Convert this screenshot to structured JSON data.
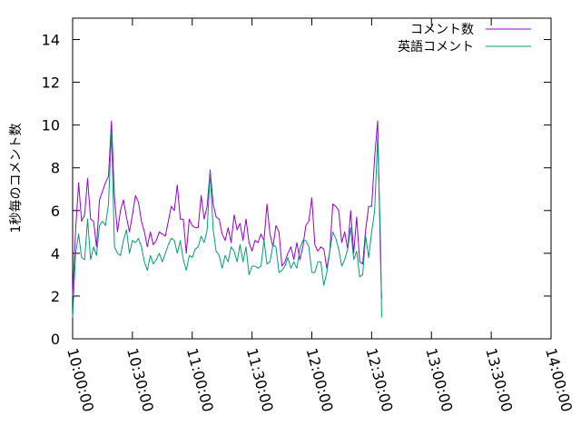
{
  "chart_data": {
    "type": "line",
    "title": "",
    "ylabel": "1秒毎のコメント数",
    "xlabel": "",
    "ylim": [
      0,
      15
    ],
    "yticks": [
      0,
      2,
      4,
      6,
      8,
      10,
      12,
      14
    ],
    "ytick_labels": [
      "0",
      "2",
      "4",
      "6",
      "8",
      "10",
      "12",
      "14"
    ],
    "xlim_min": [
      600,
      840
    ],
    "xticks_min": [
      600,
      630,
      660,
      690,
      720,
      750,
      780,
      810,
      840
    ],
    "xtick_labels": [
      "10:00:00",
      "10:30:00",
      "11:00:00",
      "11:30:00",
      "12:00:00",
      "12:30:00",
      "13:00:00",
      "13:30:00",
      "14:00:00"
    ],
    "grid": false,
    "legend_position": "top-right",
    "series": [
      {
        "name": "コメント数",
        "color": "#9400d3",
        "points": [
          [
            600,
            2.0
          ],
          [
            601.5,
            5.1
          ],
          [
            603,
            7.3
          ],
          [
            604.5,
            5.5
          ],
          [
            606,
            5.8
          ],
          [
            607.5,
            7.5
          ],
          [
            609,
            5.6
          ],
          [
            610.5,
            5.5
          ],
          [
            612,
            4.3
          ],
          [
            613.5,
            6.5
          ],
          [
            615,
            6.9
          ],
          [
            616.5,
            7.3
          ],
          [
            618,
            7.6
          ],
          [
            619.5,
            10.2
          ],
          [
            621,
            6.6
          ],
          [
            622.5,
            5.0
          ],
          [
            624,
            6.0
          ],
          [
            625.5,
            6.5
          ],
          [
            627,
            5.7
          ],
          [
            628.5,
            5.0
          ],
          [
            630,
            5.8
          ],
          [
            631.5,
            6.7
          ],
          [
            633,
            6.4
          ],
          [
            634.5,
            5.5
          ],
          [
            636,
            5.0
          ],
          [
            637.5,
            4.3
          ],
          [
            639,
            5.0
          ],
          [
            640.5,
            4.4
          ],
          [
            642,
            4.6
          ],
          [
            643.5,
            5.0
          ],
          [
            645,
            4.9
          ],
          [
            646.5,
            4.8
          ],
          [
            648,
            5.5
          ],
          [
            649.5,
            6.2
          ],
          [
            651,
            6.0
          ],
          [
            652.5,
            7.2
          ],
          [
            654,
            5.6
          ],
          [
            655.5,
            5.6
          ],
          [
            657,
            4.0
          ],
          [
            658.5,
            5.6
          ],
          [
            660,
            5.3
          ],
          [
            661.5,
            5.2
          ],
          [
            663,
            5.2
          ],
          [
            664.5,
            6.7
          ],
          [
            666,
            5.6
          ],
          [
            667.5,
            6.2
          ],
          [
            669,
            7.9
          ],
          [
            670.5,
            6.3
          ],
          [
            672,
            5.7
          ],
          [
            673.5,
            5.6
          ],
          [
            675,
            4.9
          ],
          [
            676.5,
            4.6
          ],
          [
            678,
            5.2
          ],
          [
            679.5,
            4.5
          ],
          [
            681,
            5.8
          ],
          [
            682.5,
            5.1
          ],
          [
            684,
            5.4
          ],
          [
            685.5,
            4.6
          ],
          [
            687,
            5.6
          ],
          [
            688.5,
            4.5
          ],
          [
            690,
            4.1
          ],
          [
            691.5,
            4.6
          ],
          [
            693,
            4.5
          ],
          [
            694.5,
            4.9
          ],
          [
            696,
            4.6
          ],
          [
            697.5,
            6.3
          ],
          [
            699,
            4.9
          ],
          [
            700.5,
            4.3
          ],
          [
            702,
            5.3
          ],
          [
            703.5,
            5.0
          ],
          [
            705,
            3.4
          ],
          [
            706.5,
            3.6
          ],
          [
            708,
            4.0
          ],
          [
            709.5,
            4.3
          ],
          [
            711,
            3.7
          ],
          [
            712.5,
            4.5
          ],
          [
            714,
            3.7
          ],
          [
            715.5,
            4.3
          ],
          [
            717,
            5.3
          ],
          [
            718.5,
            5.5
          ],
          [
            720,
            6.6
          ],
          [
            721.5,
            4.4
          ],
          [
            723,
            4.1
          ],
          [
            724.5,
            4.3
          ],
          [
            726,
            4.2
          ],
          [
            727.5,
            3.3
          ],
          [
            729,
            4.1
          ],
          [
            730.5,
            6.3
          ],
          [
            732,
            6.2
          ],
          [
            733.5,
            6.0
          ],
          [
            735,
            4.5
          ],
          [
            736.5,
            5.0
          ],
          [
            738,
            4.2
          ],
          [
            739.5,
            6.0
          ],
          [
            741,
            4.0
          ],
          [
            742.5,
            5.7
          ],
          [
            744,
            3.6
          ],
          [
            745.5,
            3.5
          ],
          [
            747,
            5.1
          ],
          [
            748.5,
            6.2
          ],
          [
            750,
            6.2
          ],
          [
            751.5,
            8.5
          ],
          [
            753,
            10.2
          ],
          [
            754.5,
            3.5
          ],
          [
            755,
            1.9
          ]
        ]
      },
      {
        "name": "英語コメント",
        "color": "#009e73",
        "points": [
          [
            600,
            1.0
          ],
          [
            601.5,
            4.0
          ],
          [
            603,
            4.9
          ],
          [
            604.5,
            3.8
          ],
          [
            606,
            3.7
          ],
          [
            607.5,
            5.6
          ],
          [
            609,
            3.7
          ],
          [
            610.5,
            4.3
          ],
          [
            612,
            3.9
          ],
          [
            613.5,
            5.3
          ],
          [
            615,
            5.5
          ],
          [
            616.5,
            5.3
          ],
          [
            618,
            6.3
          ],
          [
            619.5,
            9.7
          ],
          [
            621,
            4.3
          ],
          [
            622.5,
            4.0
          ],
          [
            624,
            3.9
          ],
          [
            625.5,
            4.6
          ],
          [
            627,
            5.1
          ],
          [
            628.5,
            4.0
          ],
          [
            630,
            4.6
          ],
          [
            631.5,
            4.5
          ],
          [
            633,
            4.7
          ],
          [
            634.5,
            4.3
          ],
          [
            636,
            3.6
          ],
          [
            637.5,
            3.2
          ],
          [
            639,
            3.9
          ],
          [
            640.5,
            3.5
          ],
          [
            642,
            3.7
          ],
          [
            643.5,
            4.0
          ],
          [
            645,
            3.6
          ],
          [
            646.5,
            4.0
          ],
          [
            648,
            4.4
          ],
          [
            649.5,
            4.7
          ],
          [
            651,
            4.6
          ],
          [
            652.5,
            4.0
          ],
          [
            654,
            4.6
          ],
          [
            655.5,
            3.7
          ],
          [
            657,
            3.2
          ],
          [
            658.5,
            3.9
          ],
          [
            660,
            3.8
          ],
          [
            661.5,
            4.2
          ],
          [
            663,
            4.3
          ],
          [
            664.5,
            4.8
          ],
          [
            666,
            4.5
          ],
          [
            667.5,
            5.1
          ],
          [
            669,
            7.8
          ],
          [
            670.5,
            5.1
          ],
          [
            672,
            4.1
          ],
          [
            673.5,
            3.9
          ],
          [
            675,
            3.3
          ],
          [
            676.5,
            3.9
          ],
          [
            678,
            3.6
          ],
          [
            679.5,
            4.3
          ],
          [
            681,
            4.1
          ],
          [
            682.5,
            3.6
          ],
          [
            684,
            4.4
          ],
          [
            685.5,
            3.6
          ],
          [
            687,
            4.3
          ],
          [
            688.5,
            3.0
          ],
          [
            690,
            3.4
          ],
          [
            691.5,
            3.4
          ],
          [
            693,
            3.3
          ],
          [
            694.5,
            3.4
          ],
          [
            696,
            4.6
          ],
          [
            697.5,
            3.5
          ],
          [
            699,
            3.6
          ],
          [
            700.5,
            4.4
          ],
          [
            702,
            4.3
          ],
          [
            703.5,
            3.1
          ],
          [
            705,
            3.2
          ],
          [
            706.5,
            3.4
          ],
          [
            708,
            3.8
          ],
          [
            709.5,
            3.3
          ],
          [
            711,
            3.6
          ],
          [
            712.5,
            3.3
          ],
          [
            714,
            4.2
          ],
          [
            715.5,
            4.6
          ],
          [
            717,
            4.6
          ],
          [
            718.5,
            4.3
          ],
          [
            720,
            3.1
          ],
          [
            721.5,
            3.1
          ],
          [
            723,
            3.6
          ],
          [
            724.5,
            3.6
          ],
          [
            726,
            2.5
          ],
          [
            727.5,
            3.1
          ],
          [
            729,
            4.1
          ],
          [
            730.5,
            5.0
          ],
          [
            732,
            4.7
          ],
          [
            733.5,
            4.2
          ],
          [
            735,
            3.4
          ],
          [
            736.5,
            3.7
          ],
          [
            738,
            4.2
          ],
          [
            739.5,
            5.2
          ],
          [
            741,
            3.7
          ],
          [
            742.5,
            4.1
          ],
          [
            744,
            2.9
          ],
          [
            745.5,
            3.0
          ],
          [
            747,
            4.8
          ],
          [
            748.5,
            3.8
          ],
          [
            750,
            5.0
          ],
          [
            751.5,
            6.0
          ],
          [
            753,
            9.4
          ],
          [
            754.5,
            4.4
          ],
          [
            755,
            1.0
          ]
        ]
      }
    ]
  }
}
